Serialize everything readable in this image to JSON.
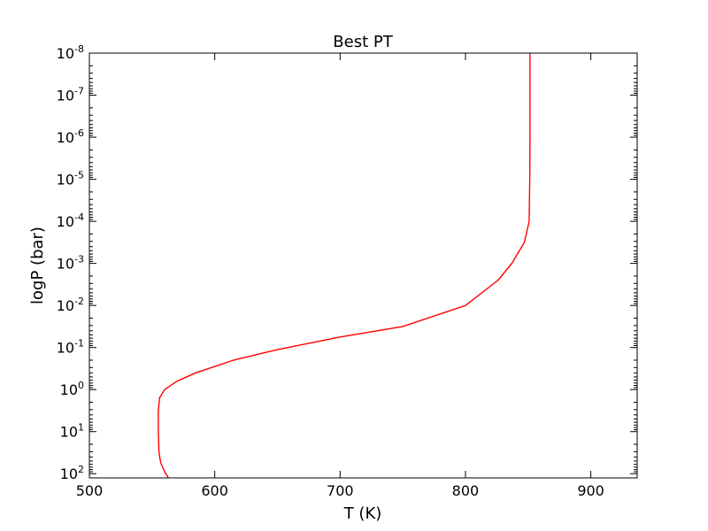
{
  "chart_data": {
    "type": "line",
    "title": "Best PT",
    "xlabel": "T (K)",
    "ylabel": "logP (bar)",
    "xlim": [
      500,
      937
    ],
    "ylim_log10": [
      2.1,
      -8
    ],
    "y_scale": "log",
    "y_inverted": true,
    "grid": false,
    "x_ticks": [
      500,
      600,
      700,
      800,
      900
    ],
    "x_tick_labels": [
      "500",
      "600",
      "700",
      "800",
      "900"
    ],
    "y_ticks_log10": [
      -8,
      -7,
      -6,
      -5,
      -4,
      -3,
      -2,
      -1,
      0,
      1,
      2
    ],
    "y_tick_labels": [
      {
        "base": "10",
        "exp": "-8"
      },
      {
        "base": "10",
        "exp": "-7"
      },
      {
        "base": "10",
        "exp": "-6"
      },
      {
        "base": "10",
        "exp": "-5"
      },
      {
        "base": "10",
        "exp": "-4"
      },
      {
        "base": "10",
        "exp": "-3"
      },
      {
        "base": "10",
        "exp": "-2"
      },
      {
        "base": "10",
        "exp": "-1"
      },
      {
        "base": "10",
        "exp": "0"
      },
      {
        "base": "10",
        "exp": "1"
      },
      {
        "base": "10",
        "exp": "2"
      }
    ],
    "series": [
      {
        "color": "#ff0000",
        "points": [
          {
            "T": 851.5,
            "P": 1e-08
          },
          {
            "T": 851.5,
            "P": 1e-06
          },
          {
            "T": 851.3,
            "P": 1e-05
          },
          {
            "T": 850.8,
            "P": 0.0001
          },
          {
            "T": 847.0,
            "P": 0.000316
          },
          {
            "T": 837.0,
            "P": 0.001
          },
          {
            "T": 826.0,
            "P": 0.00251
          },
          {
            "T": 800.0,
            "P": 0.01
          },
          {
            "T": 750.0,
            "P": 0.0316
          },
          {
            "T": 700.0,
            "P": 0.0562
          },
          {
            "T": 650.0,
            "P": 0.112
          },
          {
            "T": 615.0,
            "P": 0.2
          },
          {
            "T": 585.0,
            "P": 0.398
          },
          {
            "T": 570.0,
            "P": 0.631
          },
          {
            "T": 560.0,
            "P": 1.0
          },
          {
            "T": 556.0,
            "P": 1.58
          },
          {
            "T": 555.0,
            "P": 3.16
          },
          {
            "T": 555.0,
            "P": 10
          },
          {
            "T": 555.5,
            "P": 31.6
          },
          {
            "T": 557.0,
            "P": 56.2
          },
          {
            "T": 560.0,
            "P": 89.1
          },
          {
            "T": 563.0,
            "P": 126
          }
        ]
      }
    ]
  }
}
